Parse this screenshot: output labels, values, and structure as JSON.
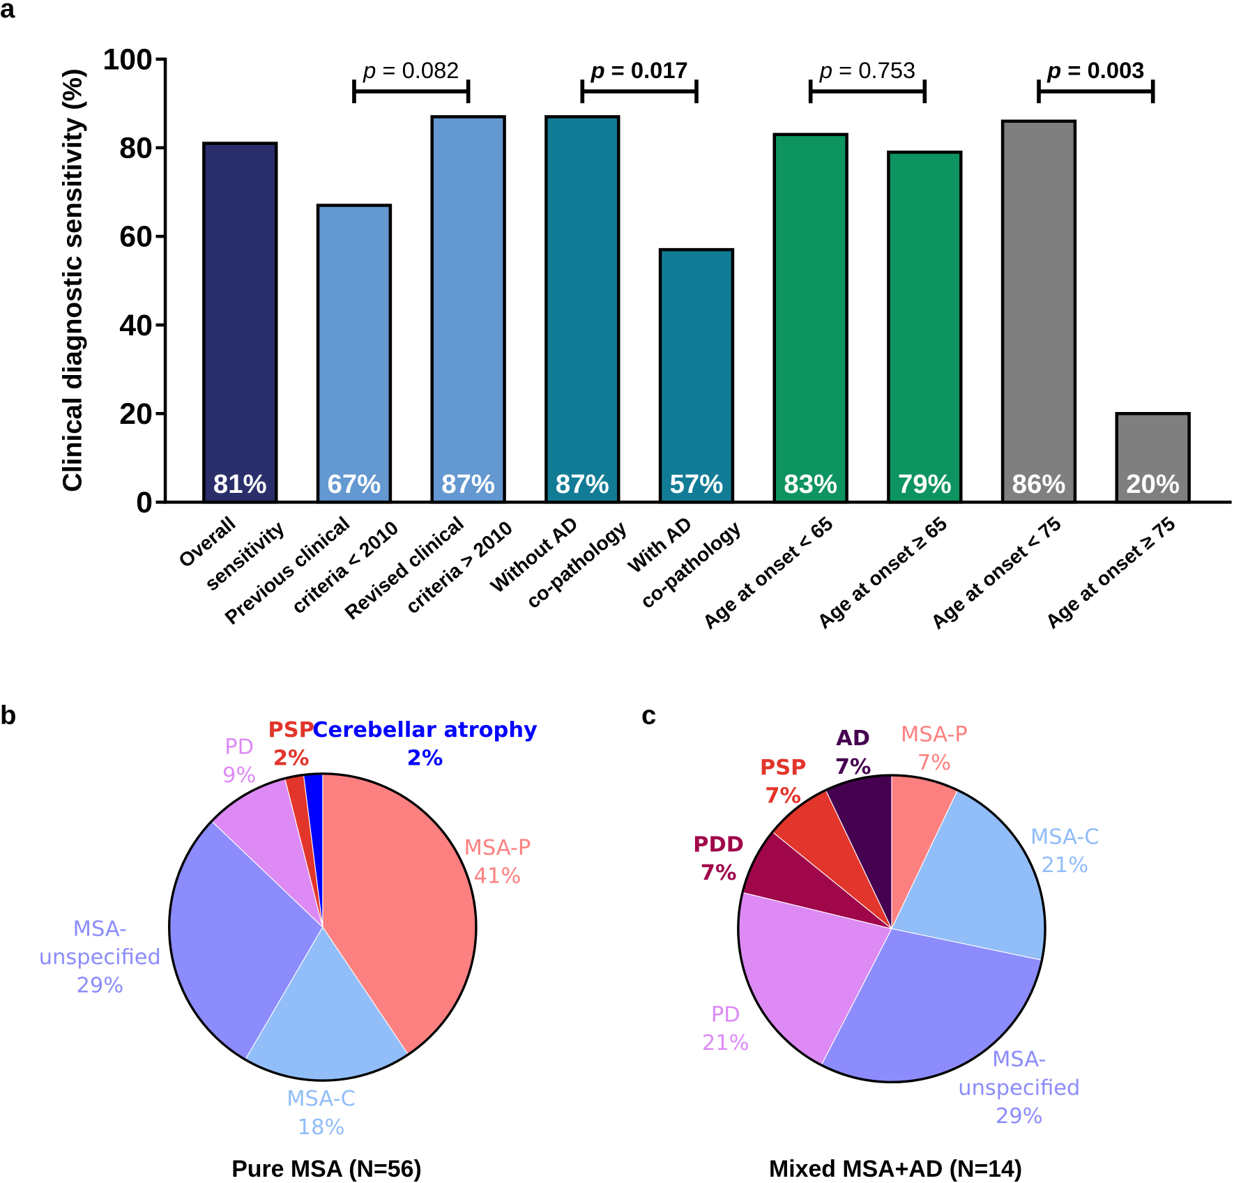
{
  "panels": {
    "a": "a",
    "b": "b",
    "c": "c"
  },
  "chart_data": [
    {
      "type": "bar",
      "ylabel": "Clinical diagnostic sensitivity (%)",
      "ylim": [
        0,
        100
      ],
      "yticks": [
        "0",
        "20",
        "40",
        "60",
        "80",
        "100"
      ],
      "categories": [
        [
          "Overall",
          "sensitivity"
        ],
        [
          "Previous clinical",
          "criteria < 2010"
        ],
        [
          "Revised clinical",
          "criteria > 2010"
        ],
        [
          "Without AD",
          "co-pathology"
        ],
        [
          "With AD",
          "co-pathology"
        ],
        [
          "Age at onset < 65"
        ],
        [
          "Age at onset ≥ 65"
        ],
        [
          "Age at onset < 75"
        ],
        [
          "Age at onset ≥ 75"
        ]
      ],
      "values": [
        81,
        67,
        87,
        87,
        57,
        83,
        79,
        86,
        20
      ],
      "data_labels": [
        "81%",
        "67%",
        "87%",
        "87%",
        "57%",
        "83%",
        "79%",
        "86%",
        "20%"
      ],
      "colors": [
        "#2a2e6b",
        "#6398d0",
        "#6398d0",
        "#127c96",
        "#127c96",
        "#0d9460",
        "#0d9460",
        "#7f7f7f",
        "#7f7f7f"
      ],
      "comparisons": [
        {
          "bars": [
            1,
            2
          ],
          "p_label": "p",
          "p_value": " = 0.082",
          "bold": false
        },
        {
          "bars": [
            3,
            4
          ],
          "p_label": "p",
          "p_value": " = 0.017",
          "bold": true
        },
        {
          "bars": [
            5,
            6
          ],
          "p_label": "p",
          "p_value": " = 0.753",
          "bold": false
        },
        {
          "bars": [
            7,
            8
          ],
          "p_label": "p",
          "p_value": " = 0.003",
          "bold": true
        }
      ],
      "grid": false
    },
    {
      "type": "pie",
      "title": "Pure MSA (N=56)",
      "slices": [
        {
          "label": "MSA-P",
          "value": 41,
          "text": "41%",
          "color": "#fd8080"
        },
        {
          "label": "MSA-C",
          "value": 18,
          "text": "18%",
          "color": "#91bdf8"
        },
        {
          "label": "MSA-\nunspecified",
          "value": 29,
          "text": "29%",
          "color": "#8c8cfc"
        },
        {
          "label": "PD",
          "value": 9,
          "text": "9%",
          "color": "#dd8af5"
        },
        {
          "label": "PSP",
          "value": 2,
          "text": "2%",
          "color": "#e2352b"
        },
        {
          "label": "Cerebellar atrophy",
          "value": 2,
          "text": "2%",
          "color": "#0000ff"
        }
      ]
    },
    {
      "type": "pie",
      "title": "Mixed MSA+AD (N=14)",
      "slices": [
        {
          "label": "MSA-P",
          "value": 7,
          "text": "7%",
          "color": "#fd8080"
        },
        {
          "label": "MSA-C",
          "value": 21,
          "text": "21%",
          "color": "#91bdf8"
        },
        {
          "label": "MSA-\nunspecified",
          "value": 29,
          "text": "29%",
          "color": "#8c8cfc"
        },
        {
          "label": "PD",
          "value": 21,
          "text": "21%",
          "color": "#dd8af5"
        },
        {
          "label": "PDD",
          "value": 7,
          "text": "7%",
          "color": "#a0064a"
        },
        {
          "label": "PSP",
          "value": 7,
          "text": "7%",
          "color": "#e2352b"
        },
        {
          "label": "AD",
          "value": 7,
          "text": "7%",
          "color": "#45004f"
        }
      ]
    }
  ]
}
